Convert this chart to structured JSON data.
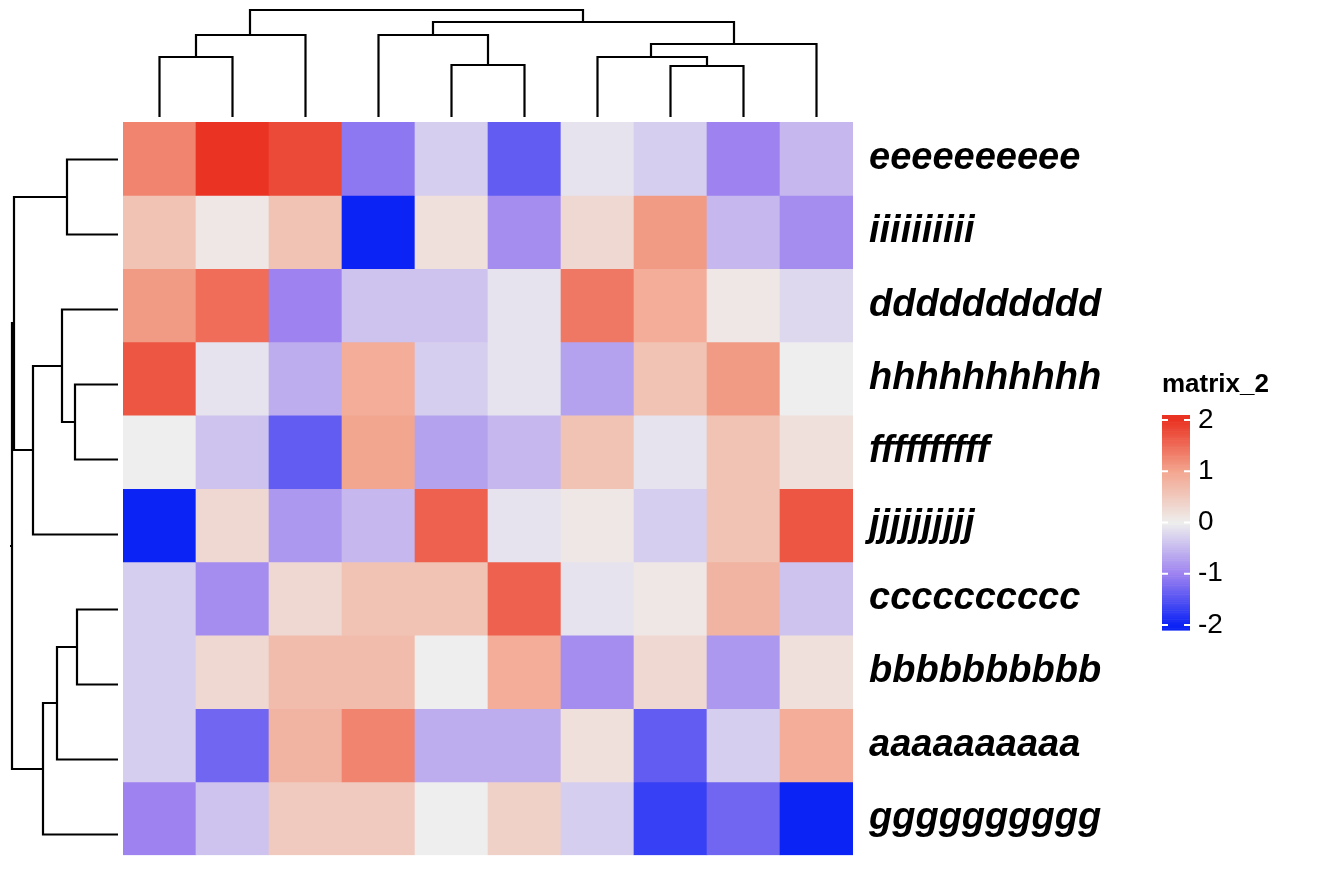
{
  "chart_data": {
    "type": "heatmap",
    "clabel": "matrix_2",
    "categories": [
      null,
      null,
      null,
      null,
      null,
      null,
      null,
      null,
      null,
      null
    ],
    "y_categories": [
      "eeeeeeeeee",
      "iiiiiiiiii",
      "dddddddddd",
      "hhhhhhhhhh",
      "ffffffffff",
      "jjjjjjjjjj",
      "cccccccccc",
      "bbbbbbbbbb",
      "aaaaaaaaaa",
      "gggggggggg"
    ],
    "cells": [
      [
        1.3,
        2.0,
        1.8,
        -1.1,
        -0.3,
        -1.4,
        -0.1,
        -0.3,
        -1.0,
        -0.5
      ],
      [
        0.6,
        0.1,
        0.6,
        -2.0,
        0.2,
        -0.9,
        0.3,
        1.1,
        -0.5,
        -0.9
      ],
      [
        1.1,
        1.5,
        -1.0,
        -0.4,
        -0.4,
        -0.1,
        1.4,
        0.9,
        0.1,
        -0.2
      ],
      [
        1.7,
        -0.1,
        -0.6,
        0.9,
        -0.3,
        -0.1,
        -0.7,
        0.6,
        1.1,
        0.0
      ],
      [
        0.0,
        -0.4,
        -1.4,
        1.0,
        -0.7,
        -0.5,
        0.6,
        -0.1,
        0.6,
        0.2
      ],
      [
        -2.1,
        0.3,
        -0.8,
        -0.5,
        1.6,
        -0.1,
        0.1,
        -0.3,
        0.6,
        1.7
      ],
      [
        -0.3,
        -0.9,
        0.3,
        0.6,
        0.6,
        1.6,
        -0.1,
        0.1,
        0.8,
        -0.4
      ],
      [
        -0.3,
        0.3,
        0.7,
        0.7,
        0.0,
        0.9,
        -0.9,
        0.3,
        -0.8,
        0.2
      ],
      [
        -0.3,
        -1.3,
        0.8,
        1.3,
        -0.6,
        -0.6,
        0.2,
        -1.4,
        -0.3,
        0.9
      ],
      [
        -1.0,
        -0.4,
        0.5,
        0.5,
        0.0,
        0.4,
        -0.3,
        -1.7,
        -1.3,
        -2.1
      ]
    ],
    "clim": [
      -2.1,
      2.1
    ],
    "cticks": [
      -2,
      -1,
      0,
      1,
      2
    ],
    "tick_labels": "y"
  }
}
